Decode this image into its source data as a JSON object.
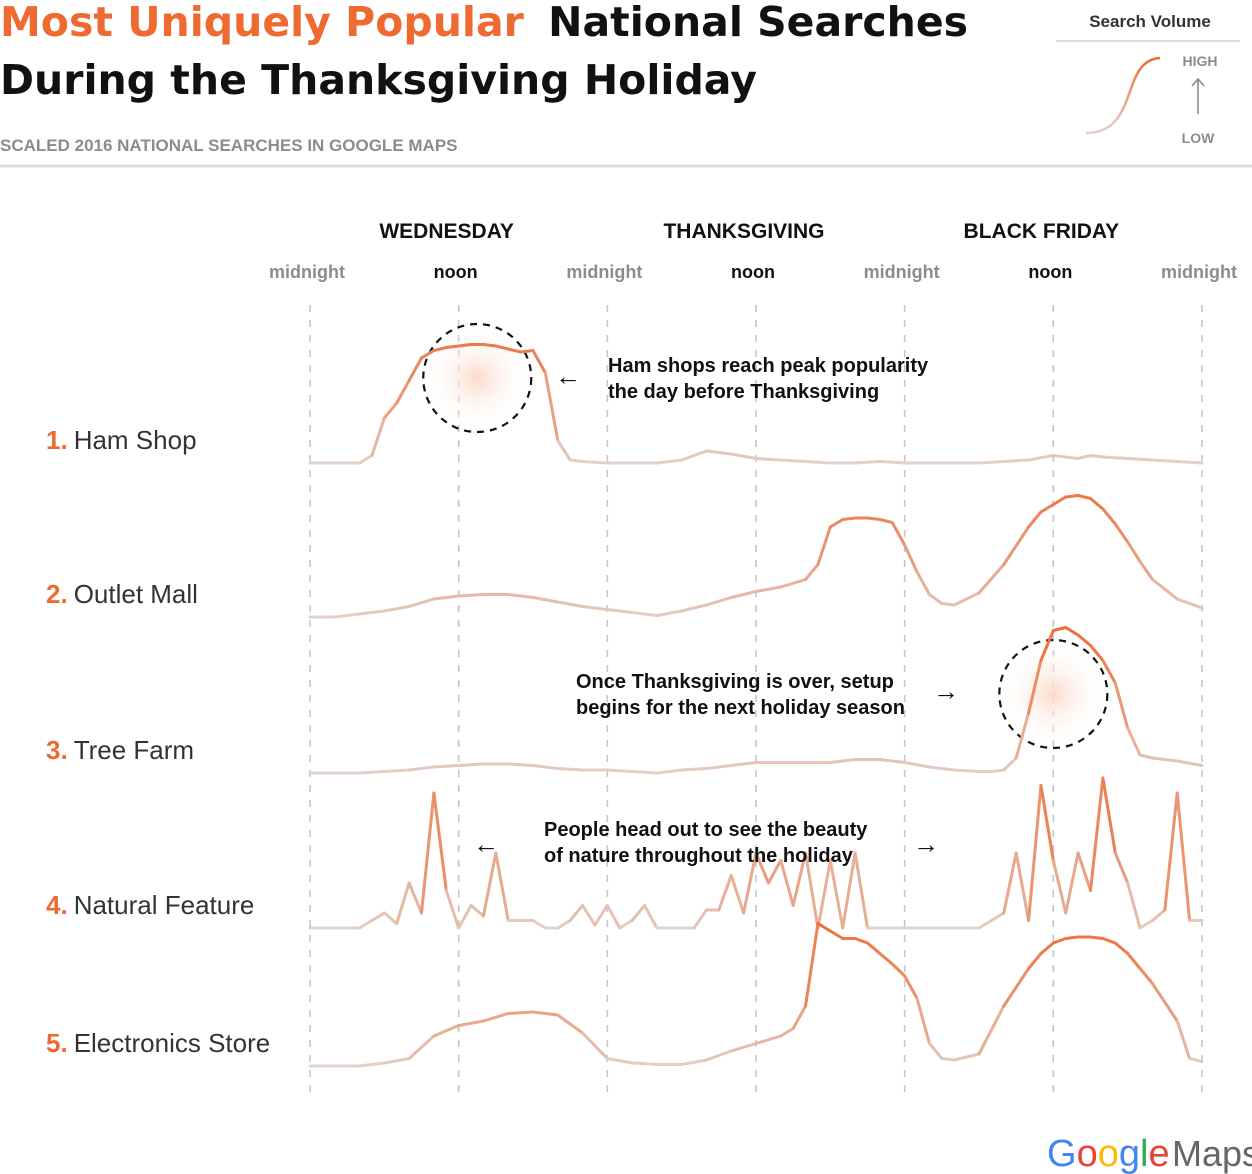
{
  "header": {
    "title_highlight": "Most Uniquely Popular",
    "title_rest_line1": "National Searches",
    "title_line2": "During the Thanksgiving Holiday",
    "subtitle": "SCALED 2016 NATIONAL SEARCHES IN GOOGLE MAPS",
    "accent_color": "#ee6a31"
  },
  "legend": {
    "title": "Search Volume",
    "high_label": "HIGH",
    "low_label": "LOW"
  },
  "logo": {
    "google": "Google",
    "maps": "Maps"
  },
  "chart_data": {
    "type": "line",
    "days": [
      "WEDNESDAY",
      "THANKSGIVING",
      "BLACK FRIDAY"
    ],
    "x_ticks": [
      "midnight",
      "noon",
      "midnight",
      "noon",
      "midnight",
      "noon",
      "midnight"
    ],
    "x_tick_hours": [
      0,
      12,
      24,
      36,
      48,
      60,
      72
    ],
    "xlim": [
      0,
      72
    ],
    "ylim": [
      0,
      1
    ],
    "grid": true,
    "legend_position": "top-right",
    "colors": {
      "high": "#ee6a31",
      "low": "#e2d3cc",
      "text_accent": "#ee6a31",
      "tick_gray": "#8c8c8c"
    },
    "series": [
      {
        "rank": "1.",
        "name": "Ham Shop",
        "x": [
          0,
          2,
          4,
          5,
          6,
          7,
          8,
          9,
          10,
          11,
          12,
          13,
          14,
          15,
          16,
          17,
          18,
          19,
          20,
          21,
          22,
          24,
          26,
          28,
          30,
          32,
          34,
          36,
          38,
          40,
          42,
          44,
          46,
          48,
          50,
          52,
          54,
          56,
          58,
          60,
          61,
          62,
          63,
          64,
          66,
          68,
          70,
          72
        ],
        "y": [
          0,
          0,
          0,
          0.05,
          0.3,
          0.4,
          0.55,
          0.7,
          0.75,
          0.77,
          0.78,
          0.79,
          0.79,
          0.78,
          0.76,
          0.74,
          0.75,
          0.6,
          0.15,
          0.02,
          0.01,
          0,
          0,
          0,
          0.02,
          0.08,
          0.06,
          0.03,
          0.02,
          0.01,
          0,
          0,
          0.01,
          0,
          0,
          0,
          0,
          0.01,
          0.02,
          0.05,
          0.04,
          0.03,
          0.05,
          0.04,
          0.03,
          0.02,
          0.01,
          0
        ]
      },
      {
        "rank": "2.",
        "name": "Outlet Mall",
        "x": [
          0,
          2,
          4,
          6,
          8,
          10,
          12,
          14,
          16,
          18,
          20,
          22,
          24,
          26,
          28,
          30,
          32,
          34,
          36,
          38,
          40,
          41,
          42,
          43,
          44,
          45,
          46,
          47,
          48,
          49,
          50,
          51,
          52,
          54,
          56,
          58,
          59,
          60,
          61,
          62,
          63,
          64,
          65,
          66,
          67,
          68,
          70,
          72
        ],
        "y": [
          0,
          0,
          0.02,
          0.04,
          0.07,
          0.12,
          0.14,
          0.15,
          0.15,
          0.13,
          0.1,
          0.07,
          0.05,
          0.03,
          0.01,
          0.04,
          0.08,
          0.13,
          0.17,
          0.2,
          0.25,
          0.35,
          0.6,
          0.65,
          0.66,
          0.66,
          0.65,
          0.63,
          0.48,
          0.3,
          0.15,
          0.09,
          0.08,
          0.16,
          0.35,
          0.6,
          0.7,
          0.75,
          0.8,
          0.81,
          0.79,
          0.72,
          0.62,
          0.5,
          0.37,
          0.25,
          0.12,
          0.06
        ]
      },
      {
        "rank": "3.",
        "name": "Tree Farm",
        "x": [
          0,
          2,
          4,
          6,
          8,
          10,
          12,
          14,
          16,
          18,
          20,
          22,
          24,
          26,
          28,
          30,
          32,
          34,
          36,
          38,
          40,
          42,
          44,
          46,
          48,
          50,
          52,
          54,
          55,
          56,
          57,
          58,
          59,
          60,
          61,
          62,
          63,
          64,
          65,
          66,
          67,
          68,
          70,
          72
        ],
        "y": [
          0,
          0,
          0,
          0.01,
          0.02,
          0.04,
          0.05,
          0.06,
          0.06,
          0.05,
          0.03,
          0.02,
          0.02,
          0.01,
          0,
          0.02,
          0.03,
          0.05,
          0.07,
          0.07,
          0.07,
          0.07,
          0.09,
          0.09,
          0.07,
          0.04,
          0.02,
          0.01,
          0.01,
          0.02,
          0.1,
          0.4,
          0.75,
          0.95,
          0.97,
          0.92,
          0.85,
          0.75,
          0.6,
          0.3,
          0.12,
          0.1,
          0.08,
          0.05
        ]
      },
      {
        "rank": "4.",
        "name": "Natural Feature",
        "x": [
          0,
          2,
          4,
          5,
          6,
          7,
          8,
          9,
          10,
          11,
          12,
          13,
          14,
          15,
          16,
          17,
          18,
          19,
          20,
          21,
          22,
          23,
          24,
          25,
          26,
          27,
          28,
          29,
          30,
          31,
          32,
          33,
          34,
          35,
          36,
          37,
          38,
          39,
          40,
          41,
          42,
          43,
          44,
          45,
          46,
          47,
          48,
          49,
          50,
          51,
          52,
          53,
          54,
          55,
          56,
          57,
          58,
          59,
          60,
          61,
          62,
          63,
          64,
          65,
          66,
          67,
          68,
          69,
          70,
          71,
          72
        ],
        "y": [
          0,
          0,
          0,
          0.05,
          0.1,
          0.03,
          0.3,
          0.1,
          0.9,
          0.25,
          0,
          0.15,
          0.08,
          0.5,
          0.05,
          0.05,
          0.05,
          0.0,
          0.0,
          0.05,
          0.15,
          0.02,
          0.15,
          0.0,
          0.05,
          0.15,
          0.0,
          0.0,
          0.0,
          0.0,
          0.12,
          0.12,
          0.35,
          0.1,
          0.5,
          0.3,
          0.45,
          0.15,
          0.5,
          0.0,
          0.45,
          0.0,
          0.5,
          0.0,
          0.0,
          0.0,
          0.0,
          0.0,
          0.0,
          0.0,
          0.0,
          0.0,
          0.0,
          0.05,
          0.1,
          0.5,
          0.05,
          0.95,
          0.45,
          0.1,
          0.5,
          0.25,
          1.0,
          0.5,
          0.3,
          0.0,
          0.05,
          0.12,
          0.9,
          0.05,
          0.05
        ]
      },
      {
        "rank": "5.",
        "name": "Electronics Store",
        "x": [
          0,
          2,
          4,
          6,
          8,
          10,
          12,
          14,
          16,
          18,
          20,
          22,
          24,
          26,
          28,
          30,
          32,
          34,
          36,
          38,
          39,
          40,
          41,
          42,
          43,
          44,
          45,
          46,
          47,
          48,
          49,
          50,
          51,
          52,
          54,
          56,
          58,
          59,
          60,
          61,
          62,
          63,
          64,
          65,
          66,
          67,
          68,
          70,
          71,
          72
        ],
        "y": [
          0,
          0,
          0,
          0.02,
          0.05,
          0.2,
          0.27,
          0.3,
          0.35,
          0.36,
          0.34,
          0.22,
          0.05,
          0.02,
          0.01,
          0.01,
          0.04,
          0.1,
          0.15,
          0.2,
          0.25,
          0.4,
          0.95,
          0.9,
          0.85,
          0.85,
          0.82,
          0.75,
          0.68,
          0.6,
          0.45,
          0.15,
          0.05,
          0.04,
          0.08,
          0.4,
          0.65,
          0.75,
          0.82,
          0.85,
          0.86,
          0.86,
          0.85,
          0.82,
          0.75,
          0.65,
          0.55,
          0.3,
          0.05,
          0.03
        ]
      }
    ],
    "annotations": [
      {
        "text_line1": "Ham shops reach peak popularity",
        "text_line2": "the day before Thanksgiving",
        "series": "Ham Shop",
        "arrow": "←"
      },
      {
        "text_line1": "Once Thanksgiving is over, setup",
        "text_line2": "begins for the next holiday season",
        "series": "Tree Farm",
        "arrow": "→"
      },
      {
        "text_line1": "People head out to see the beauty",
        "text_line2": "of nature throughout the holiday",
        "series": "Natural Feature",
        "arrow_left": "←",
        "arrow_right": "→"
      }
    ]
  }
}
